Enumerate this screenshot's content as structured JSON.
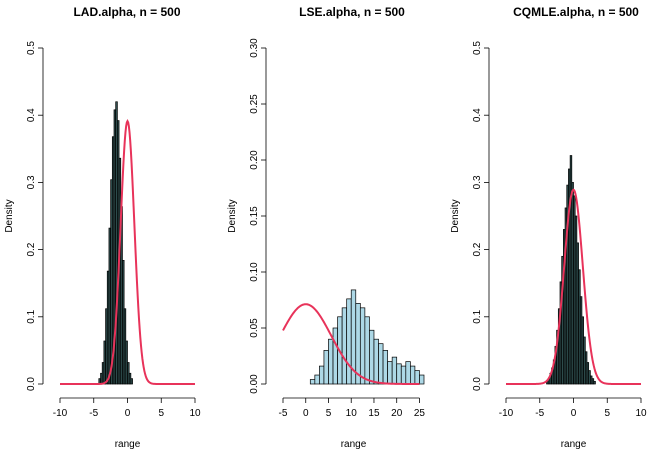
{
  "chart_data": [
    {
      "type": "histogram",
      "title": "LAD.alpha, n = 500",
      "xlabel": "range",
      "ylabel": "Density",
      "xlim": [
        -10,
        10
      ],
      "ylim": [
        0,
        0.5
      ],
      "xticks": [
        -10,
        -5,
        0,
        5,
        10
      ],
      "xtick_labels": [
        "-10",
        "-5",
        "0",
        "5",
        "10"
      ],
      "yticks": [
        0,
        0.1,
        0.2,
        0.3,
        0.4,
        0.5
      ],
      "ytick_labels": [
        "0.0",
        "0.1",
        "0.2",
        "0.3",
        "0.4",
        "0.5"
      ],
      "bar_color": "#2f4f4f",
      "bins": {
        "start": -4.25,
        "width": 0.25,
        "density": [
          0.008,
          0.016,
          0.032,
          0.064,
          0.112,
          0.168,
          0.232,
          0.304,
          0.368,
          0.408,
          0.42,
          0.392,
          0.336,
          0.264,
          0.184,
          0.112,
          0.064,
          0.032,
          0.016,
          0.008
        ]
      },
      "curve": {
        "label": "normal density",
        "distribution": "normal",
        "mean": 0,
        "sd": 1.02,
        "color": "#e8335a",
        "x_range": [
          -10,
          10
        ]
      }
    },
    {
      "type": "histogram",
      "title": "LSE.alpha, n = 500",
      "xlabel": "range",
      "ylabel": "Density",
      "xlim": [
        -5,
        26
      ],
      "ylim": [
        0,
        0.3
      ],
      "xticks": [
        -5,
        0,
        5,
        10,
        15,
        20,
        25
      ],
      "xtick_labels": [
        "-5",
        "0",
        "5",
        "10",
        "15",
        "20",
        "25"
      ],
      "yticks": [
        0,
        0.05,
        0.1,
        0.15,
        0.2,
        0.25,
        0.3
      ],
      "ytick_labels": [
        "0.00",
        "0.05",
        "0.10",
        "0.15",
        "0.20",
        "0.25",
        "0.30"
      ],
      "bar_color": "#add8e6",
      "bins": {
        "start": 1,
        "width": 1,
        "density": [
          0.004,
          0.008,
          0.016,
          0.03,
          0.04,
          0.05,
          0.06,
          0.068,
          0.076,
          0.084,
          0.072,
          0.068,
          0.06,
          0.048,
          0.04,
          0.036,
          0.03,
          0.02,
          0.024,
          0.018,
          0.016,
          0.02,
          0.016,
          0.012,
          0.008
        ]
      },
      "curve": {
        "label": "normal density",
        "distribution": "normal",
        "mean": 0,
        "sd": 5.6,
        "color": "#e8335a",
        "x_range": [
          -5,
          25
        ]
      }
    },
    {
      "type": "histogram",
      "title": "CQMLE.alpha, n = 500",
      "xlabel": "range",
      "ylabel": "Density",
      "xlim": [
        -10,
        10
      ],
      "ylim": [
        0,
        0.5
      ],
      "xticks": [
        -10,
        -5,
        0,
        5,
        10
      ],
      "xtick_labels": [
        "-10",
        "-5",
        "0",
        "5",
        "10"
      ],
      "yticks": [
        0,
        0.1,
        0.2,
        0.3,
        0.4,
        0.5
      ],
      "ytick_labels": [
        "0.0",
        "0.1",
        "0.2",
        "0.3",
        "0.4",
        "0.5"
      ],
      "bar_color": "#2f4f4f",
      "bins": {
        "start": -4,
        "width": 0.25,
        "density": [
          0.004,
          0.008,
          0.016,
          0.024,
          0.036,
          0.056,
          0.08,
          0.112,
          0.152,
          0.19,
          0.23,
          0.262,
          0.296,
          0.32,
          0.34,
          0.3,
          0.28,
          0.25,
          0.21,
          0.17,
          0.13,
          0.1,
          0.07,
          0.048,
          0.032,
          0.02,
          0.012,
          0.008,
          0.004
        ]
      },
      "curve": {
        "label": "normal density",
        "distribution": "normal",
        "mean": 0,
        "sd": 1.38,
        "color": "#e8335a",
        "x_range": [
          -10,
          10
        ]
      }
    }
  ]
}
